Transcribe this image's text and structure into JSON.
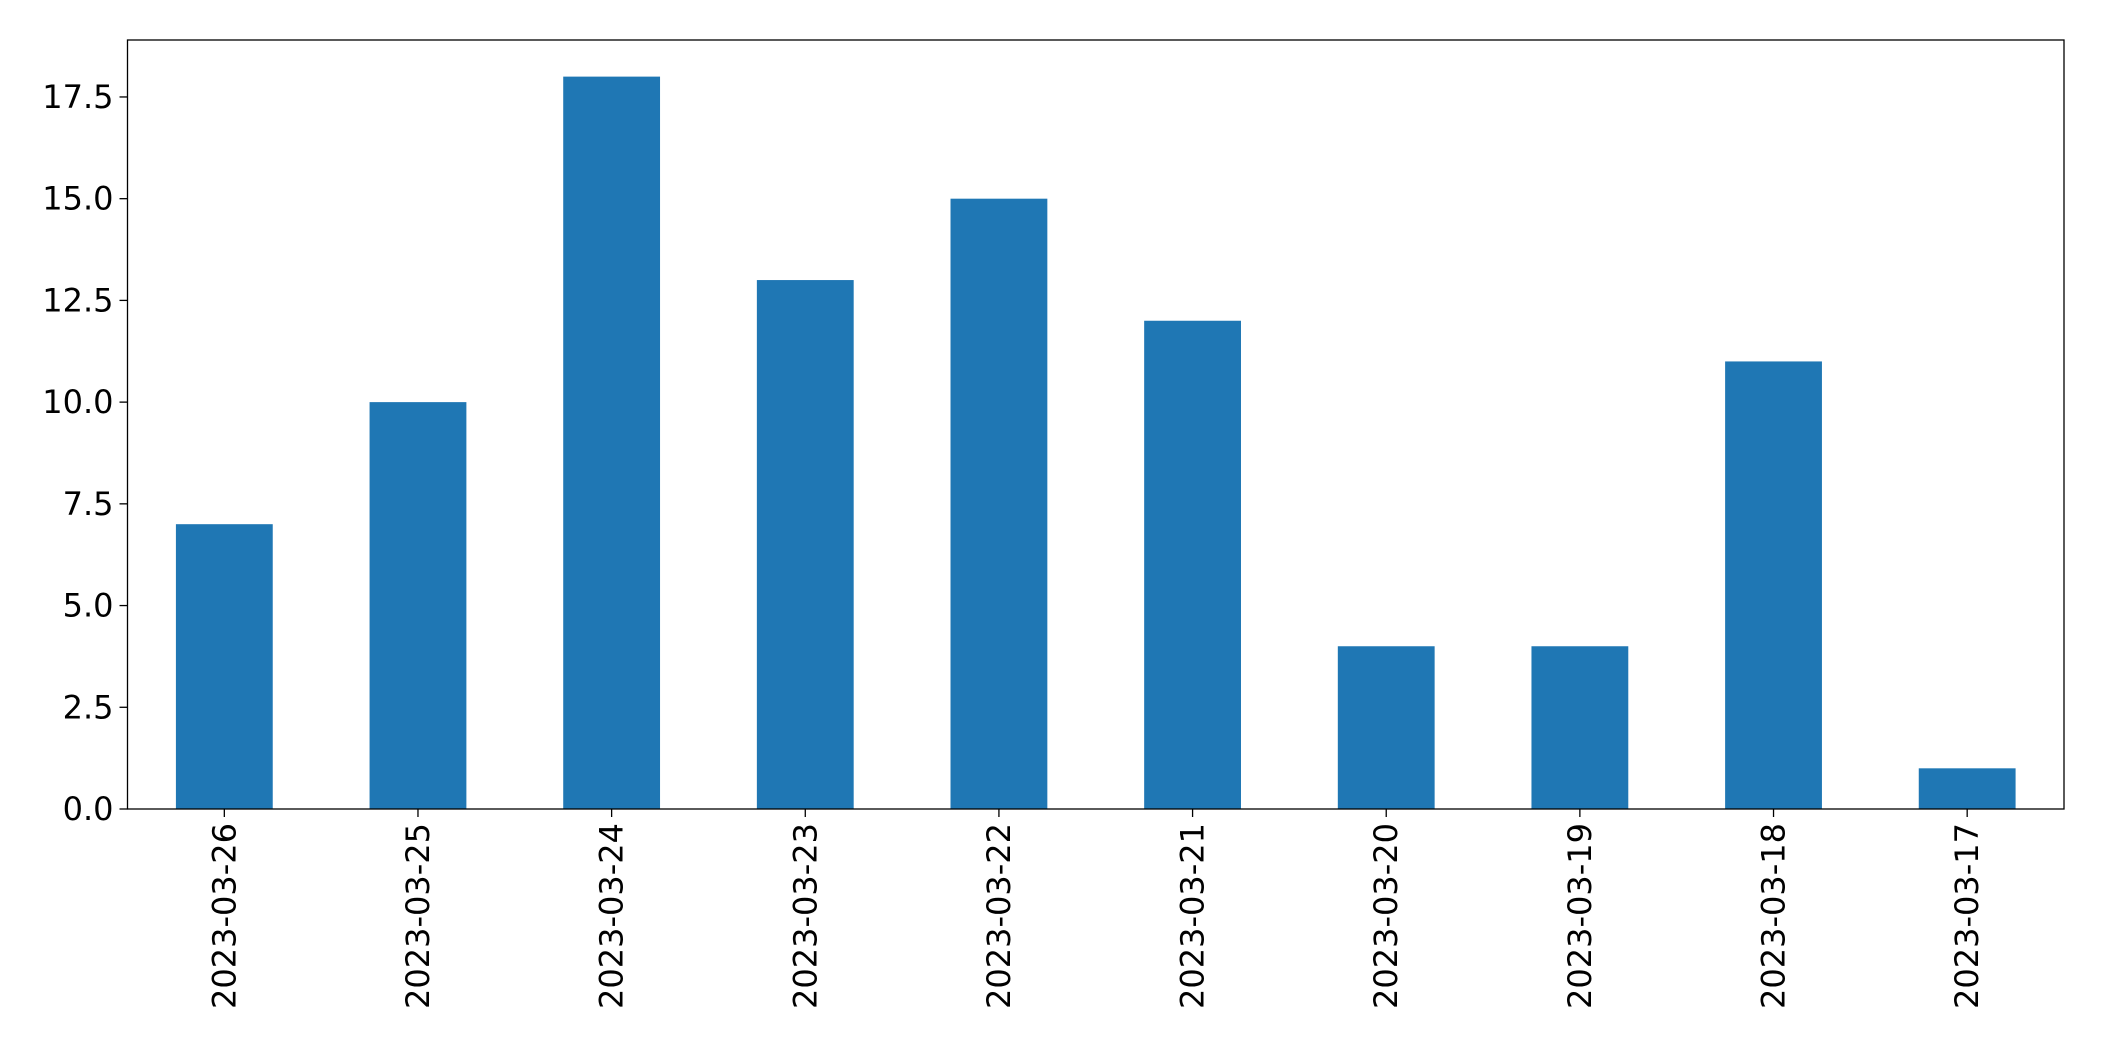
{
  "chart_data": {
    "type": "bar",
    "categories": [
      "2023-03-26",
      "2023-03-25",
      "2023-03-24",
      "2023-03-23",
      "2023-03-22",
      "2023-03-21",
      "2023-03-20",
      "2023-03-19",
      "2023-03-18",
      "2023-03-17"
    ],
    "values": [
      7,
      10,
      18,
      13,
      15,
      12,
      4,
      4,
      11,
      1
    ],
    "color": "#1f77b4",
    "ylim": [
      0,
      18.9
    ],
    "yticks": [
      {
        "value": 0,
        "label": "0.0"
      },
      2.5,
      {
        "value": 5,
        "label": "5.0"
      },
      7.5,
      {
        "value": 10,
        "label": "10.0"
      },
      12.5,
      {
        "value": 15,
        "label": "15.0"
      },
      17.5
    ],
    "grid": false
  }
}
